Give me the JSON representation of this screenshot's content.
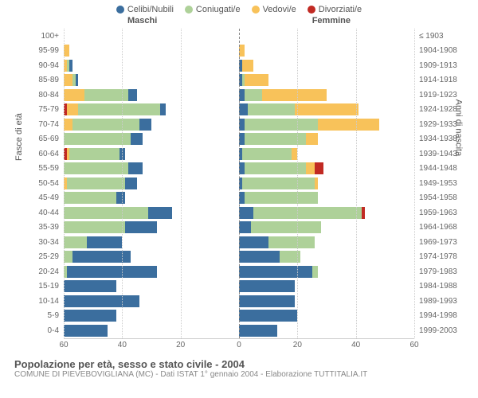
{
  "legend": [
    {
      "label": "Celibi/Nubili",
      "color": "#3b6e9e"
    },
    {
      "label": "Coniugati/e",
      "color": "#aed199"
    },
    {
      "label": "Vedovi/e",
      "color": "#f8c25a"
    },
    {
      "label": "Divorziati/e",
      "color": "#c12a23"
    }
  ],
  "sides": {
    "left": "Maschi",
    "right": "Femmine"
  },
  "axis_labels": {
    "left": "Fasce di età",
    "right": "Anni di nascita"
  },
  "footer": {
    "title": "Popolazione per età, sesso e stato civile - 2004",
    "sub": "COMUNE DI PIEVEBOVIGLIANA (MC) - Dati ISTAT 1° gennaio 2004 - Elaborazione TUTTITALIA.IT"
  },
  "axis": {
    "max": 60,
    "ticks": [
      60,
      40,
      20,
      0,
      20,
      40,
      60
    ]
  },
  "colors": {
    "celibi": "#3b6e9e",
    "coniugati": "#aed199",
    "vedovi": "#f8c25a",
    "divorziati": "#c12a23",
    "grid": "#cccccc",
    "center": "#888888",
    "bg": "#ffffff"
  },
  "rows": [
    {
      "age": "100+",
      "year": "≤ 1903",
      "m": {
        "c": 0,
        "m": 0,
        "v": 0,
        "d": 0
      },
      "f": {
        "c": 0,
        "m": 0,
        "v": 0,
        "d": 0
      }
    },
    {
      "age": "95-99",
      "year": "1904-1908",
      "m": {
        "c": 0,
        "m": 0,
        "v": 2,
        "d": 0
      },
      "f": {
        "c": 0,
        "m": 0,
        "v": 2,
        "d": 0
      }
    },
    {
      "age": "90-94",
      "year": "1909-1913",
      "m": {
        "c": 1,
        "m": 1,
        "v": 1,
        "d": 0
      },
      "f": {
        "c": 1,
        "m": 0,
        "v": 4,
        "d": 0
      }
    },
    {
      "age": "85-89",
      "year": "1914-1918",
      "m": {
        "c": 1,
        "m": 1,
        "v": 3,
        "d": 0
      },
      "f": {
        "c": 1,
        "m": 1,
        "v": 8,
        "d": 0
      }
    },
    {
      "age": "80-84",
      "year": "1919-1923",
      "m": {
        "c": 3,
        "m": 15,
        "v": 7,
        "d": 0
      },
      "f": {
        "c": 2,
        "m": 6,
        "v": 22,
        "d": 0
      }
    },
    {
      "age": "75-79",
      "year": "1924-1928",
      "m": {
        "c": 2,
        "m": 28,
        "v": 4,
        "d": 1
      },
      "f": {
        "c": 3,
        "m": 16,
        "v": 22,
        "d": 0
      }
    },
    {
      "age": "70-74",
      "year": "1929-1933",
      "m": {
        "c": 4,
        "m": 23,
        "v": 3,
        "d": 0
      },
      "f": {
        "c": 2,
        "m": 25,
        "v": 21,
        "d": 0
      }
    },
    {
      "age": "65-69",
      "year": "1934-1938",
      "m": {
        "c": 4,
        "m": 23,
        "v": 0,
        "d": 0
      },
      "f": {
        "c": 2,
        "m": 21,
        "v": 4,
        "d": 0
      }
    },
    {
      "age": "60-64",
      "year": "1939-1943",
      "m": {
        "c": 2,
        "m": 17,
        "v": 1,
        "d": 1
      },
      "f": {
        "c": 1,
        "m": 17,
        "v": 2,
        "d": 0
      }
    },
    {
      "age": "55-59",
      "year": "1944-1948",
      "m": {
        "c": 5,
        "m": 22,
        "v": 0,
        "d": 0
      },
      "f": {
        "c": 2,
        "m": 21,
        "v": 3,
        "d": 3
      }
    },
    {
      "age": "50-54",
      "year": "1949-1953",
      "m": {
        "c": 4,
        "m": 20,
        "v": 1,
        "d": 0
      },
      "f": {
        "c": 1,
        "m": 25,
        "v": 1,
        "d": 0
      }
    },
    {
      "age": "45-49",
      "year": "1954-1958",
      "m": {
        "c": 3,
        "m": 18,
        "v": 0,
        "d": 0
      },
      "f": {
        "c": 2,
        "m": 25,
        "v": 0,
        "d": 0
      }
    },
    {
      "age": "40-44",
      "year": "1959-1963",
      "m": {
        "c": 8,
        "m": 29,
        "v": 0,
        "d": 0
      },
      "f": {
        "c": 5,
        "m": 37,
        "v": 0,
        "d": 1
      }
    },
    {
      "age": "35-39",
      "year": "1964-1968",
      "m": {
        "c": 11,
        "m": 21,
        "v": 0,
        "d": 0
      },
      "f": {
        "c": 4,
        "m": 24,
        "v": 0,
        "d": 0
      }
    },
    {
      "age": "30-34",
      "year": "1969-1973",
      "m": {
        "c": 12,
        "m": 8,
        "v": 0,
        "d": 0
      },
      "f": {
        "c": 10,
        "m": 16,
        "v": 0,
        "d": 0
      }
    },
    {
      "age": "25-29",
      "year": "1974-1978",
      "m": {
        "c": 20,
        "m": 3,
        "v": 0,
        "d": 0
      },
      "f": {
        "c": 14,
        "m": 7,
        "v": 0,
        "d": 0
      }
    },
    {
      "age": "20-24",
      "year": "1979-1983",
      "m": {
        "c": 31,
        "m": 1,
        "v": 0,
        "d": 0
      },
      "f": {
        "c": 25,
        "m": 2,
        "v": 0,
        "d": 0
      }
    },
    {
      "age": "15-19",
      "year": "1984-1988",
      "m": {
        "c": 18,
        "m": 0,
        "v": 0,
        "d": 0
      },
      "f": {
        "c": 19,
        "m": 0,
        "v": 0,
        "d": 0
      }
    },
    {
      "age": "10-14",
      "year": "1989-1993",
      "m": {
        "c": 26,
        "m": 0,
        "v": 0,
        "d": 0
      },
      "f": {
        "c": 19,
        "m": 0,
        "v": 0,
        "d": 0
      }
    },
    {
      "age": "5-9",
      "year": "1994-1998",
      "m": {
        "c": 18,
        "m": 0,
        "v": 0,
        "d": 0
      },
      "f": {
        "c": 20,
        "m": 0,
        "v": 0,
        "d": 0
      }
    },
    {
      "age": "0-4",
      "year": "1999-2003",
      "m": {
        "c": 15,
        "m": 0,
        "v": 0,
        "d": 0
      },
      "f": {
        "c": 13,
        "m": 0,
        "v": 0,
        "d": 0
      }
    }
  ]
}
